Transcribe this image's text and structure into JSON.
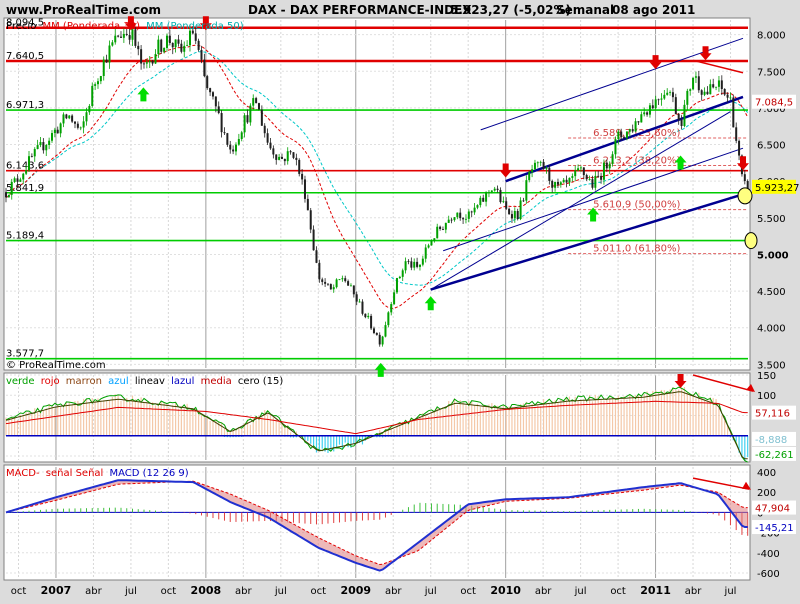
{
  "header": {
    "site": "www.ProRealTime.com",
    "title": "DAX - DAX PERFORMANCE-INDEX",
    "last": "5.923,27 (-5,02%)",
    "period": "Semanal",
    "date": "08 ago 2011"
  },
  "main_panel": {
    "legend_price": "Precio",
    "legend_ma1": "MM (Ponderada 30)",
    "legend_ma2": "MM (Ponderada 50)",
    "watermark": "© ProRealTime.com",
    "y_ticks": [
      "8.000",
      "7.500",
      "7.000",
      "6.500",
      "6.000",
      "5.500",
      "5.000",
      "4.500",
      "4.000",
      "3.500"
    ],
    "level_labels": [
      "8.094,5",
      "7.640,5",
      "6.971,3",
      "6.143,6",
      "5.841,9",
      "5.189,4",
      "3.577,7"
    ],
    "fib_labels": [
      "6.589,7 (23,60%)",
      "6.213,2 (38,20%)",
      "5.610,9 (50,00%)",
      "5.011,0 (61,80%)"
    ],
    "last_price_tag": "5.923,27",
    "channel_tag": "7.084,5"
  },
  "osc_panel": {
    "legend": [
      "verde",
      "rojo",
      "marron",
      "azul",
      "lineav",
      "lazul",
      "media",
      "cero (15)"
    ],
    "y_ticks": [
      "150",
      "100",
      "50",
      "0",
      "-50"
    ],
    "tags": [
      "57,116",
      "-8,888",
      "-62,261"
    ]
  },
  "macd_panel": {
    "legend": [
      "MACD-",
      "señal Señal",
      "MACD (12 26 9)"
    ],
    "y_ticks": [
      "400",
      "200",
      "0",
      "-200",
      "-400",
      "-600"
    ],
    "tags": [
      "47,904",
      "-145,21"
    ]
  },
  "x_axis": {
    "labels": [
      "oct",
      "2007",
      "abr",
      "jul",
      "oct",
      "2008",
      "abr",
      "jul",
      "oct",
      "2009",
      "abr",
      "jul",
      "oct",
      "2010",
      "abr",
      "jul",
      "oct",
      "2011",
      "abr",
      "jul"
    ]
  },
  "colors": {
    "bg_plot": "#ffffff",
    "bg_frame": "#dcdcdc",
    "up": "#00a000",
    "down": "#202020",
    "resistance": "#e00000",
    "support": "#00cc00",
    "channel": "#000090",
    "ma1": "#e00000",
    "ma2": "#00c8c8"
  },
  "chart_data": [
    {
      "type": "candlestick",
      "title": "DAX - DAX PERFORMANCE-INDEX",
      "period": "weekly",
      "x_range": [
        "2006-09",
        "2011-08"
      ],
      "ylim": [
        3450,
        8200
      ],
      "scale": "linear",
      "grid": true,
      "close_series": {
        "name": "Precio",
        "points": [
          [
            "2006-09",
            5850
          ],
          [
            "2006-10",
            6050
          ],
          [
            "2006-11",
            6300
          ],
          [
            "2006-12",
            6500
          ],
          [
            "2007-01",
            6700
          ],
          [
            "2007-02",
            6900
          ],
          [
            "2007-03",
            6650
          ],
          [
            "2007-04",
            7300
          ],
          [
            "2007-05",
            7700
          ],
          [
            "2007-06",
            8000
          ],
          [
            "2007-07",
            8050
          ],
          [
            "2007-08",
            7500
          ],
          [
            "2007-09",
            7800
          ],
          [
            "2007-10",
            7950
          ],
          [
            "2007-11",
            7750
          ],
          [
            "2007-12",
            8050
          ],
          [
            "2008-01",
            7300
          ],
          [
            "2008-02",
            6900
          ],
          [
            "2008-03",
            6400
          ],
          [
            "2008-04",
            6800
          ],
          [
            "2008-05",
            7100
          ],
          [
            "2008-06",
            6500
          ],
          [
            "2008-07",
            6300
          ],
          [
            "2008-08",
            6400
          ],
          [
            "2008-09",
            5800
          ],
          [
            "2008-10",
            4700
          ],
          [
            "2008-11",
            4500
          ],
          [
            "2008-12",
            4700
          ],
          [
            "2009-01",
            4400
          ],
          [
            "2009-02",
            4100
          ],
          [
            "2009-03",
            3800
          ],
          [
            "2009-04",
            4500
          ],
          [
            "2009-05",
            4900
          ],
          [
            "2009-06",
            4800
          ],
          [
            "2009-07",
            5200
          ],
          [
            "2009-08",
            5400
          ],
          [
            "2009-09",
            5600
          ],
          [
            "2009-10",
            5500
          ],
          [
            "2009-11",
            5700
          ],
          [
            "2009-12",
            5950
          ],
          [
            "2010-01",
            5600
          ],
          [
            "2010-02",
            5550
          ],
          [
            "2010-03",
            6150
          ],
          [
            "2010-04",
            6200
          ],
          [
            "2010-05",
            5900
          ],
          [
            "2010-06",
            5950
          ],
          [
            "2010-07",
            6150
          ],
          [
            "2010-08",
            5950
          ],
          [
            "2010-09",
            6200
          ],
          [
            "2010-10",
            6600
          ],
          [
            "2010-11",
            6700
          ],
          [
            "2010-12",
            6950
          ],
          [
            "2011-01",
            7100
          ],
          [
            "2011-02",
            7300
          ],
          [
            "2011-03",
            6800
          ],
          [
            "2011-04",
            7450
          ],
          [
            "2011-05",
            7200
          ],
          [
            "2011-06",
            7300
          ],
          [
            "2011-07",
            7100
          ],
          [
            "2011-08",
            5923
          ]
        ]
      },
      "moving_averages": [
        {
          "name": "MM (Ponderada 30)"
        },
        {
          "name": "MM (Ponderada 50)"
        }
      ],
      "horizontal_levels": [
        {
          "value": 8094.5,
          "kind": "resistance"
        },
        {
          "value": 7640.5,
          "kind": "resistance"
        },
        {
          "value": 6971.3,
          "kind": "support"
        },
        {
          "value": 6143.6,
          "kind": "resistance"
        },
        {
          "value": 5841.9,
          "kind": "support"
        },
        {
          "value": 5189.4,
          "kind": "support"
        },
        {
          "value": 3577.7,
          "kind": "support"
        }
      ],
      "fibonacci": [
        {
          "value": 6589.7,
          "pct": "23,60%"
        },
        {
          "value": 6213.2,
          "pct": "38,20%"
        },
        {
          "value": 5610.9,
          "pct": "50,00%"
        },
        {
          "value": 5011.0,
          "pct": "61,80%"
        }
      ],
      "last_value": 5923.27
    },
    {
      "type": "area",
      "title": "",
      "ylim": [
        -60,
        150
      ],
      "grid": true,
      "series": [
        {
          "name": "verde",
          "points": [
            [
              "2006-09",
              40
            ],
            [
              "2007-01",
              75
            ],
            [
              "2007-06",
              95
            ],
            [
              "2007-12",
              70
            ],
            [
              "2008-03",
              10
            ],
            [
              "2008-06",
              60
            ],
            [
              "2008-10",
              -40
            ],
            [
              "2009-01",
              -20
            ],
            [
              "2009-04",
              20
            ],
            [
              "2009-09",
              85
            ],
            [
              "2010-01",
              70
            ],
            [
              "2010-06",
              90
            ],
            [
              "2010-12",
              100
            ],
            [
              "2011-03",
              115
            ],
            [
              "2011-06",
              80
            ],
            [
              "2011-08",
              -60
            ]
          ]
        },
        {
          "name": "media",
          "points": [
            [
              "2006-09",
              30
            ],
            [
              "2007-06",
              70
            ],
            [
              "2008-01",
              60
            ],
            [
              "2008-06",
              40
            ],
            [
              "2009-01",
              5
            ],
            [
              "2009-06",
              40
            ],
            [
              "2010-01",
              65
            ],
            [
              "2010-06",
              75
            ],
            [
              "2011-01",
              85
            ],
            [
              "2011-06",
              80
            ],
            [
              "2011-08",
              57
            ]
          ]
        }
      ],
      "last_values": [
        57.116,
        -8.888,
        -62.261
      ]
    },
    {
      "type": "line",
      "title": "",
      "ylim": [
        -650,
        450
      ],
      "grid": true,
      "series": [
        {
          "name": "MACD",
          "points": [
            [
              "2006-09",
              0
            ],
            [
              "2007-01",
              150
            ],
            [
              "2007-06",
              320
            ],
            [
              "2007-12",
              300
            ],
            [
              "2008-03",
              100
            ],
            [
              "2008-06",
              -50
            ],
            [
              "2008-10",
              -350
            ],
            [
              "2009-01",
              -500
            ],
            [
              "2009-03",
              -580
            ],
            [
              "2009-06",
              -300
            ],
            [
              "2009-10",
              80
            ],
            [
              "2010-01",
              130
            ],
            [
              "2010-06",
              150
            ],
            [
              "2010-12",
              250
            ],
            [
              "2011-03",
              290
            ],
            [
              "2011-06",
              180
            ],
            [
              "2011-08",
              -145
            ]
          ]
        },
        {
          "name": "Señal",
          "points": [
            [
              "2006-09",
              0
            ],
            [
              "2007-01",
              120
            ],
            [
              "2007-06",
              280
            ],
            [
              "2007-12",
              310
            ],
            [
              "2008-03",
              180
            ],
            [
              "2008-06",
              20
            ],
            [
              "2008-10",
              -250
            ],
            [
              "2009-01",
              -430
            ],
            [
              "2009-03",
              -520
            ],
            [
              "2009-06",
              -380
            ],
            [
              "2009-10",
              20
            ],
            [
              "2010-01",
              110
            ],
            [
              "2010-06",
              140
            ],
            [
              "2010-12",
              220
            ],
            [
              "2011-03",
              270
            ],
            [
              "2011-06",
              200
            ],
            [
              "2011-08",
              48
            ]
          ]
        }
      ],
      "last_values": [
        47.904,
        -145.21
      ]
    }
  ]
}
